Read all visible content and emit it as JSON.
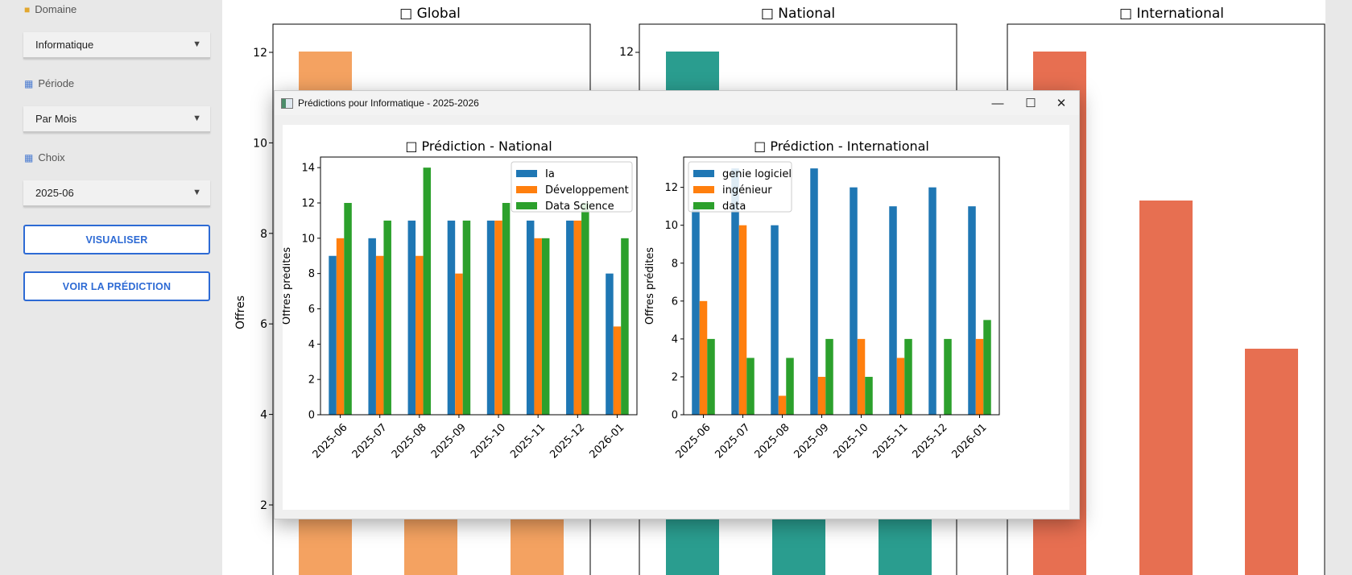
{
  "sidebar": {
    "domaine_label": "Domaine",
    "domaine_value": "Informatique",
    "periode_label": "Période",
    "periode_value": "Par Mois",
    "choix_label": "Choix",
    "choix_value": "2025-06",
    "visualiser_label": "VISUALISER",
    "prediction_label": "VOIR LA PRÉDICTION"
  },
  "background": {
    "ylabel": "Offres",
    "titles": [
      "□ Global",
      "□ National",
      "□ International"
    ],
    "yticks": [
      2,
      4,
      6,
      8,
      10,
      12
    ],
    "colors": [
      "#f4a261",
      "#2a9d8f",
      "#e76f51"
    ]
  },
  "dialog": {
    "title": "Prédictions pour Informatique - 2025-2026",
    "minimize_symbol": "—",
    "maximize_symbol": "☐",
    "close_symbol": "✕"
  },
  "chart_data": [
    {
      "type": "bar",
      "title": "□ Prédiction - National",
      "ylabel": "Offres prédites",
      "xlabel": "",
      "ylim": [
        0,
        14.6
      ],
      "yticks": [
        0,
        2,
        4,
        6,
        8,
        10,
        12,
        14
      ],
      "legend": "top-right",
      "categories": [
        "2025-06",
        "2025-07",
        "2025-08",
        "2025-09",
        "2025-10",
        "2025-11",
        "2025-12",
        "2026-01"
      ],
      "series": [
        {
          "name": "Ia",
          "color": "#1f77b4",
          "values": [
            9,
            10,
            11,
            11,
            11,
            11,
            11,
            8
          ]
        },
        {
          "name": "Développement",
          "color": "#ff7f0e",
          "values": [
            10,
            9,
            9,
            8,
            11,
            10,
            11,
            5
          ]
        },
        {
          "name": "Data Science",
          "color": "#2ca02c",
          "values": [
            12,
            11,
            14,
            11,
            12,
            10,
            12,
            10
          ]
        }
      ]
    },
    {
      "type": "bar",
      "title": "□ Prédiction - International",
      "ylabel": "Offres prédites",
      "xlabel": "",
      "ylim": [
        0,
        13.6
      ],
      "yticks": [
        0,
        2,
        4,
        6,
        8,
        10,
        12
      ],
      "legend": "top-left",
      "categories": [
        "2025-06",
        "2025-07",
        "2025-08",
        "2025-09",
        "2025-10",
        "2025-11",
        "2025-12",
        "2026-01"
      ],
      "series": [
        {
          "name": "genie logiciel",
          "color": "#1f77b4",
          "values": [
            11,
            13,
            10,
            13,
            12,
            11,
            12,
            11
          ]
        },
        {
          "name": "ingénieur",
          "color": "#ff7f0e",
          "values": [
            6,
            10,
            1,
            2,
            4,
            3,
            0,
            4
          ]
        },
        {
          "name": "data",
          "color": "#2ca02c",
          "values": [
            4,
            3,
            3,
            4,
            2,
            4,
            4,
            5
          ]
        }
      ]
    }
  ]
}
